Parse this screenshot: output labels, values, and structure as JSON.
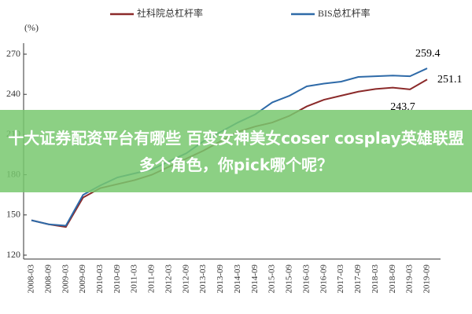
{
  "chart_data": {
    "type": "line",
    "unit_label": "(%)",
    "categories": [
      "2008-03",
      "2008-09",
      "2009-03",
      "2009-09",
      "2010-03",
      "2010-09",
      "2011-03",
      "2011-09",
      "2012-03",
      "2012-09",
      "2013-03",
      "2013-09",
      "2014-03",
      "2014-09",
      "2015-03",
      "2015-09",
      "2016-03",
      "2016-09",
      "2017-03",
      "2017-09",
      "2018-03",
      "2018-09",
      "2019-03",
      "2019-09"
    ],
    "series": [
      {
        "name": "社科院总杠杆率",
        "color": "#8b2a2a",
        "values": [
          146,
          143,
          141,
          163,
          170,
          173,
          176,
          180,
          186,
          192,
          198,
          205,
          212,
          216,
          219,
          224,
          231,
          236,
          239,
          242,
          244,
          245,
          243.7,
          251.1
        ]
      },
      {
        "name": "BIS总杠杆率",
        "color": "#2e6aa8",
        "values": [
          146,
          143,
          142,
          165,
          172,
          178,
          181,
          184,
          190,
          196,
          205,
          212,
          219,
          225,
          234,
          239,
          246,
          248,
          249.5,
          253,
          253.5,
          254,
          253.5,
          259.4
        ]
      }
    ],
    "annotations": [
      "259.4",
      "251.1",
      "243.7"
    ],
    "ylim": [
      120,
      275
    ],
    "yticks": [
      120,
      150,
      180,
      210,
      240,
      270
    ],
    "grid": false,
    "overlay_text": "十大证券配资平台有哪些 百变女神美女coser cosplay英雄联盟多个角色，你pick哪个呢？"
  }
}
